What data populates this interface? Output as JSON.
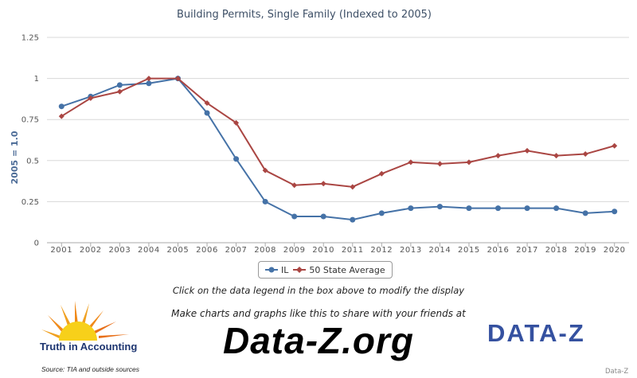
{
  "chart_data": {
    "type": "line",
    "title": "Building Permits, Single Family (Indexed to 2005)",
    "ylabel": "2005 = 1.0",
    "xlabel": "",
    "categories": [
      "2001",
      "2002",
      "2003",
      "2004",
      "2005",
      "2006",
      "2007",
      "2008",
      "2009",
      "2010",
      "2011",
      "2012",
      "2013",
      "2014",
      "2015",
      "2016",
      "2017",
      "2018",
      "2019",
      "2020"
    ],
    "ylim": [
      0,
      1.25
    ],
    "yticks": [
      0,
      0.25,
      0.5,
      0.75,
      1,
      1.25
    ],
    "ytick_labels": [
      "0",
      "0.25",
      "0.5",
      "0.75",
      "1",
      "1.25"
    ],
    "grid": true,
    "legend": "bottom-center",
    "series": [
      {
        "name": "IL",
        "color": "#4572a7",
        "marker": "circle",
        "values": [
          0.83,
          0.89,
          0.96,
          0.97,
          1.0,
          0.79,
          0.51,
          0.25,
          0.16,
          0.16,
          0.14,
          0.18,
          0.21,
          0.22,
          0.21,
          0.21,
          0.21,
          0.21,
          0.18,
          0.19
        ]
      },
      {
        "name": "50 State Average",
        "color": "#aa4643",
        "marker": "diamond",
        "values": [
          0.77,
          0.88,
          0.92,
          1.0,
          1.0,
          0.85,
          0.73,
          0.44,
          0.35,
          0.36,
          0.34,
          0.42,
          0.49,
          0.48,
          0.49,
          0.53,
          0.56,
          0.53,
          0.54,
          0.59
        ]
      }
    ]
  },
  "footer": {
    "hint": "Click on the data legend in the box above to modify the display",
    "make_charts": "Make charts and graphs like this to share with your friends at",
    "site": "Data-Z.org",
    "tia_name": "Truth in Accounting",
    "source": "Source: TIA and outside sources",
    "dz_logo": "DATA-Z",
    "credit": "Data-Z"
  }
}
